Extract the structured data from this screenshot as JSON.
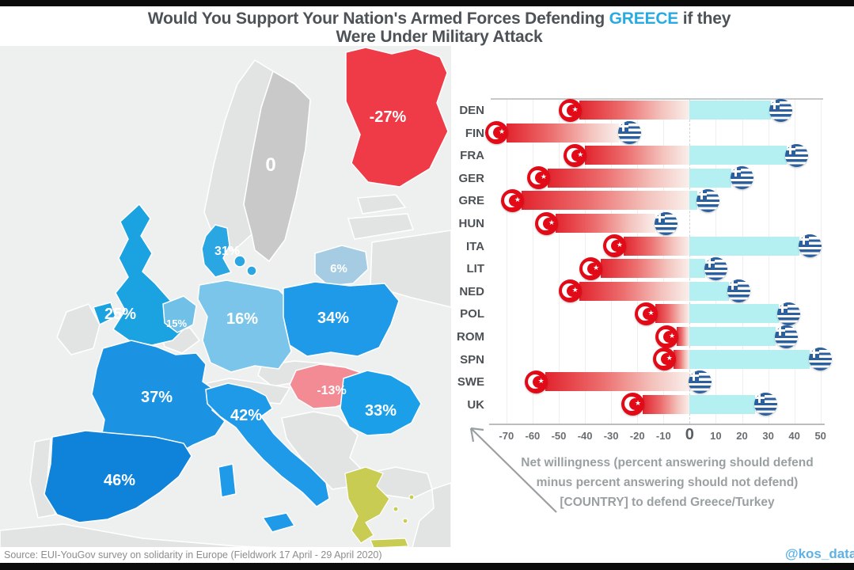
{
  "title": {
    "pre": "Would You Support Your Nation's Armed Forces Defending ",
    "highlight": "GREECE",
    "post": " if they",
    "line2": "Were Under Military Attack",
    "highlight_color": "#29abe2"
  },
  "map": {
    "countries": [
      {
        "name": "Finland",
        "label": "-27%",
        "color": "#ee3b47"
      },
      {
        "name": "Sweden",
        "label": "0",
        "color": "#c9c9c9"
      },
      {
        "name": "Denmark",
        "label": "31%",
        "color": "#2aa7e2"
      },
      {
        "name": "Lithuania",
        "label": "6%",
        "color": "#a6cce4"
      },
      {
        "name": "United Kingdom",
        "label": "25%",
        "color": "#1aa3e0"
      },
      {
        "name": "Netherlands",
        "label": "15%",
        "color": "#70c0e7"
      },
      {
        "name": "Germany",
        "label": "16%",
        "color": "#7cc5ea"
      },
      {
        "name": "Poland",
        "label": "34%",
        "color": "#1e9ae8"
      },
      {
        "name": "France",
        "label": "37%",
        "color": "#1b93e2"
      },
      {
        "name": "Italy",
        "label": "42%",
        "color": "#1e9ae8"
      },
      {
        "name": "Hungary",
        "label": "-13%",
        "color": "#f28b94"
      },
      {
        "name": "Romania",
        "label": "33%",
        "color": "#1b9fe8"
      },
      {
        "name": "Spain",
        "label": "46%",
        "color": "#0f82da"
      },
      {
        "name": "Greece",
        "label": "",
        "color": "#c9cc52"
      }
    ]
  },
  "chart_data": {
    "type": "bar",
    "orientation": "horizontal-diverging",
    "categories": [
      "DEN",
      "FIN",
      "FRA",
      "GER",
      "GRE",
      "HUN",
      "ITA",
      "LIT",
      "NED",
      "POL",
      "ROM",
      "SPN",
      "SWE",
      "UK"
    ],
    "series": [
      {
        "name": "Net willingness to defend Turkey",
        "marker": "turkey-flag",
        "values": [
          -43,
          -71,
          -41,
          -55,
          -65,
          -52,
          -26,
          -35,
          -43,
          -14,
          -6,
          -7,
          -56,
          -19
        ]
      },
      {
        "name": "Net willingness to defend Greece",
        "marker": "greece-flag",
        "values": [
          31,
          -27,
          37,
          16,
          3,
          -13,
          42,
          6,
          15,
          34,
          33,
          46,
          0,
          25
        ]
      }
    ],
    "xlim": [
      -76,
      51
    ],
    "xticks": [
      -70,
      -60,
      -50,
      -40,
      -30,
      -20,
      -10,
      0,
      10,
      20,
      30,
      40,
      50
    ],
    "grid": true,
    "zero_line": "dashed",
    "colors": {
      "negative_bar_start": "#e2242e",
      "negative_bar_end": "#f9efec",
      "positive_bar": "#b4f0f1",
      "turkey_flag_red": "#e30a17",
      "greece_flag_blue": "#2b5f9e"
    }
  },
  "annotation": {
    "line1": "Net willingness (percent answering should defend",
    "line2": "minus percent answering should not defend)",
    "line3": "[COUNTRY]  to defend Greece/Turkey"
  },
  "source": "Source: EUI-YouGov survey on solidarity in Europe (Fieldwork 17 April - 29 April 2020)",
  "credit": {
    "handle": "@kos_data"
  }
}
